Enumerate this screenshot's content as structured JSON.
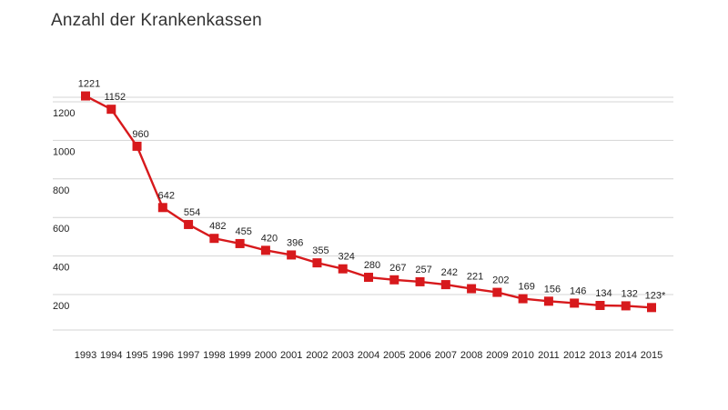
{
  "chart_data": {
    "type": "line",
    "title": "Anzahl der Krankenkassen",
    "xlabel": "",
    "ylabel": "",
    "x": [
      "1993",
      "1994",
      "1995",
      "1996",
      "1997",
      "1998",
      "1999",
      "2000",
      "2001",
      "2002",
      "2003",
      "2004",
      "2005",
      "2006",
      "2007",
      "2008",
      "2009",
      "2010",
      "2011",
      "2012",
      "2013",
      "2014",
      "2015"
    ],
    "series": [
      {
        "values": [
          1221,
          1152,
          960,
          642,
          554,
          482,
          455,
          420,
          396,
          355,
          324,
          280,
          267,
          257,
          242,
          221,
          202,
          169,
          156,
          146,
          134,
          132,
          123
        ],
        "labels": [
          "1221",
          "1152",
          "960",
          "642",
          "554",
          "482",
          "455",
          "420",
          "396",
          "355",
          "324",
          "280",
          "267",
          "257",
          "242",
          "221",
          "202",
          "169",
          "156",
          "146",
          "134",
          "132",
          "123*"
        ]
      }
    ],
    "yticks": [
      200,
      400,
      600,
      800,
      1000,
      1200
    ],
    "ylim": [
      0,
      1300
    ],
    "grid": true,
    "color": "#d7191c"
  }
}
